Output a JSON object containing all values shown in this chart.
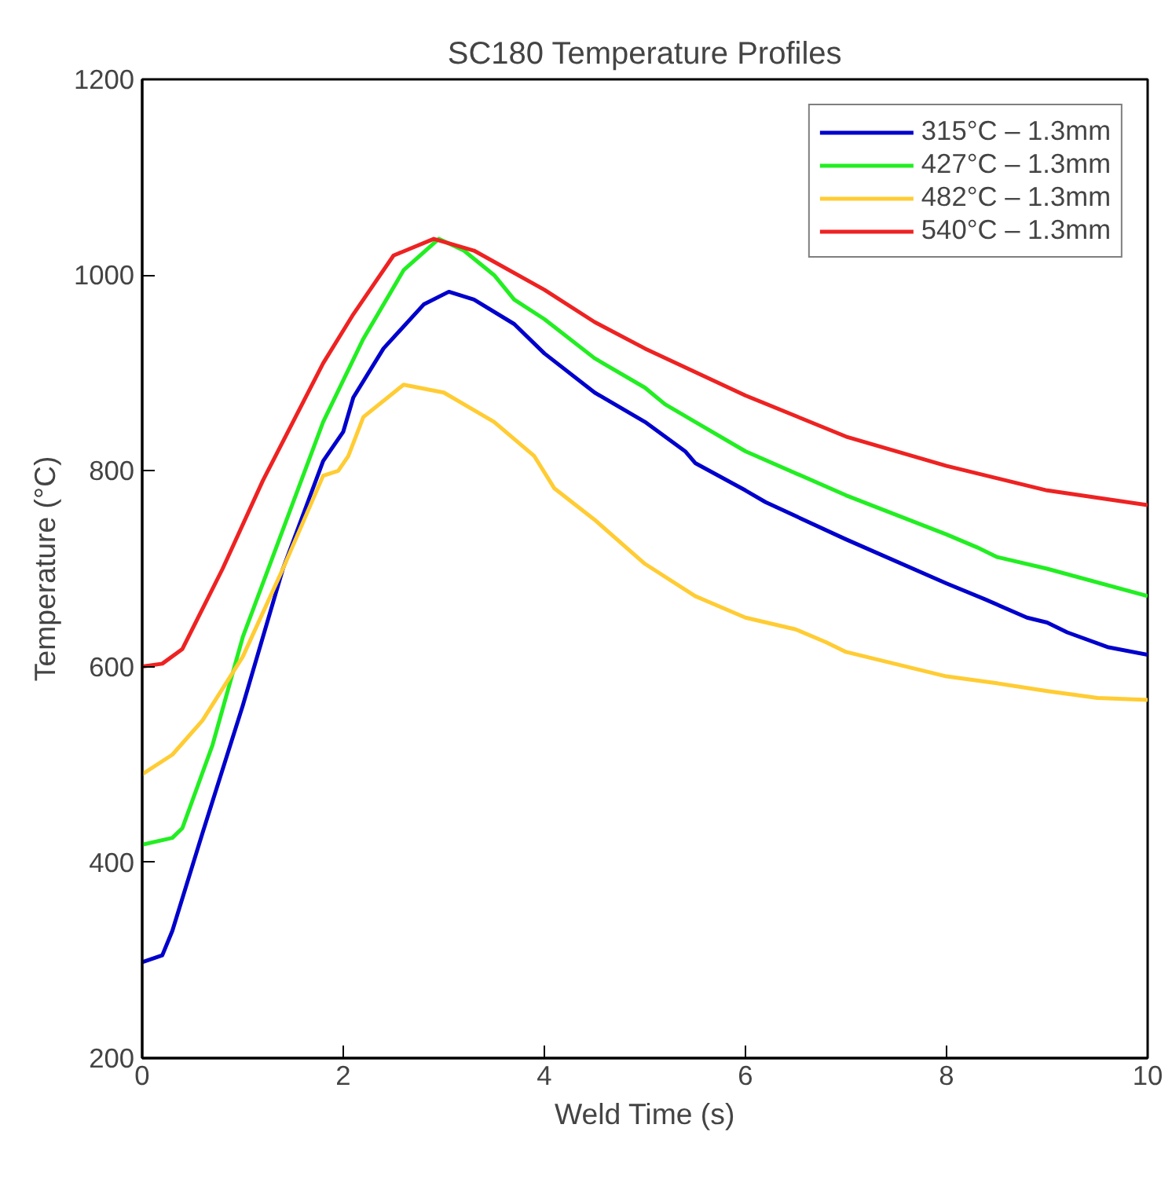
{
  "chart_data": {
    "type": "line",
    "title": "SC180 Temperature Profiles",
    "xlabel": "Weld Time (s)",
    "ylabel": "Temperature (°C)",
    "xlim": [
      0,
      10
    ],
    "xticks": [
      0,
      2,
      4,
      6,
      8,
      10
    ],
    "ylim": [
      200,
      1200
    ],
    "yticks": [
      200,
      400,
      600,
      800,
      1000,
      1200
    ],
    "grid": false,
    "legend": "top right",
    "marker": "none",
    "line_style": "solid",
    "series": [
      {
        "name": "315°C – 1.3mm",
        "color": "#0000cc",
        "x": [
          0,
          0.2,
          0.3,
          0.6,
          1,
          1.4,
          1.8,
          2.0,
          2.1,
          2.4,
          2.8,
          3.05,
          3.3,
          3.7,
          4,
          4.5,
          5,
          5.4,
          5.5,
          6,
          6.2,
          7,
          8,
          8.4,
          8.8,
          9,
          9.2,
          9.6,
          10
        ],
        "values": [
          298,
          305,
          330,
          430,
          560,
          700,
          810,
          840,
          875,
          925,
          970,
          983,
          975,
          950,
          920,
          880,
          850,
          820,
          808,
          780,
          768,
          730,
          685,
          668,
          650,
          645,
          635,
          620,
          612
        ]
      },
      {
        "name": "427°C – 1.3mm",
        "color": "#22ee22",
        "x": [
          0,
          0.3,
          0.4,
          0.7,
          1,
          1.4,
          1.8,
          2.2,
          2.6,
          2.95,
          3.2,
          3.5,
          3.7,
          4,
          4.5,
          5,
          5.2,
          5.5,
          6,
          7,
          8,
          8.3,
          8.5,
          9,
          10
        ],
        "values": [
          418,
          425,
          435,
          520,
          630,
          740,
          850,
          935,
          1005,
          1037,
          1025,
          1000,
          975,
          955,
          915,
          885,
          868,
          850,
          820,
          775,
          735,
          722,
          712,
          700,
          672
        ]
      },
      {
        "name": "482°C – 1.3mm",
        "color": "#ffcc33",
        "x": [
          0,
          0.3,
          0.6,
          1,
          1.4,
          1.8,
          1.95,
          2.05,
          2.2,
          2.6,
          3,
          3.5,
          3.9,
          4.1,
          4.5,
          5,
          5.5,
          6,
          6.5,
          6.8,
          7,
          8,
          8.5,
          9,
          9.5,
          10
        ],
        "values": [
          490,
          510,
          545,
          610,
          700,
          795,
          800,
          815,
          855,
          888,
          880,
          850,
          815,
          782,
          750,
          705,
          672,
          650,
          638,
          625,
          615,
          590,
          583,
          575,
          568,
          566
        ]
      },
      {
        "name": "540°C – 1.3mm",
        "color": "#ee2222",
        "x": [
          0,
          0.2,
          0.4,
          0.8,
          1.2,
          1.8,
          2.1,
          2.3,
          2.5,
          2.9,
          3.3,
          4,
          4.5,
          5,
          6,
          7,
          8,
          9,
          10
        ],
        "values": [
          600,
          603,
          618,
          700,
          790,
          910,
          960,
          990,
          1020,
          1037,
          1025,
          985,
          952,
          925,
          877,
          835,
          805,
          780,
          765
        ]
      }
    ]
  }
}
